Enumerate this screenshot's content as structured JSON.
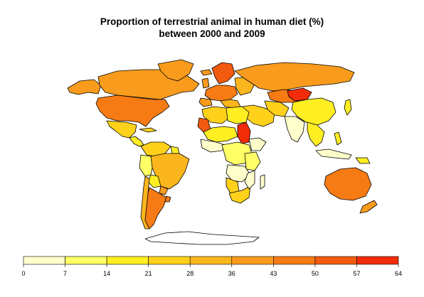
{
  "title_line1": "Proportion of terrestrial animal in human diet (%)",
  "title_line2": "between 2000 and 2009",
  "legend": {
    "breaks": [
      "0",
      "7",
      "14",
      "21",
      "28",
      "36",
      "43",
      "50",
      "57",
      "64"
    ],
    "colors": [
      "#ffffcc",
      "#ffff66",
      "#ffee22",
      "#ffd11a",
      "#fcb61d",
      "#f99b1c",
      "#f77b14",
      "#f25a0f",
      "#f22c08"
    ]
  },
  "palette": {
    "c0": "#ffffcc",
    "c1": "#ffff66",
    "c2": "#ffee22",
    "c3": "#ffd11a",
    "c4": "#fcb61d",
    "c5": "#f99b1c",
    "c6": "#f77b14",
    "c7": "#f25a0f",
    "c8": "#f22c08"
  }
}
